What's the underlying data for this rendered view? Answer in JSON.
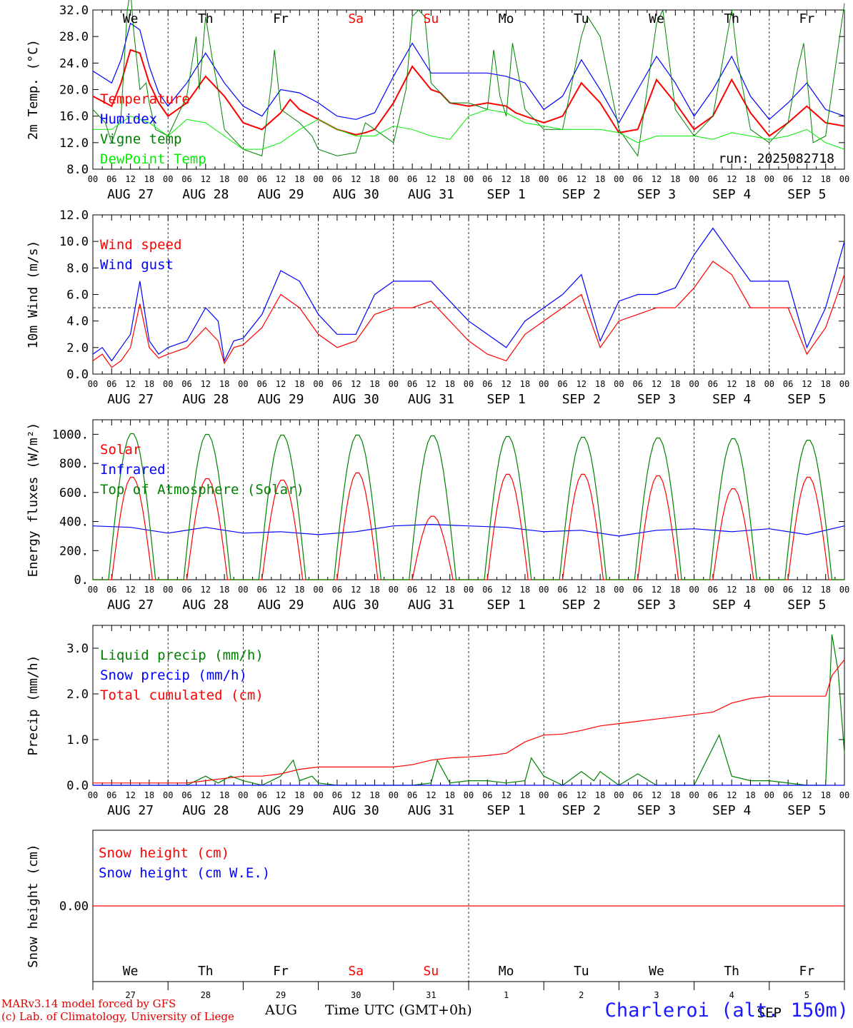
{
  "meta": {
    "model_line": "MARv3.14 model forced by GFS",
    "credit_line": "(c) Lab. of Climatology, University of Liege",
    "x_axis_title": "Time UTC (GMT+0h)",
    "month_label": "AUG",
    "month_label_sep": "SEP",
    "station": "Charleroi (alt. 150m)",
    "run_label": "run: 2025082718"
  },
  "time_axis": {
    "hour_ticks": [
      "00",
      "06",
      "12",
      "18"
    ],
    "day_labels": [
      "AUG 27",
      "AUG 28",
      "AUG 29",
      "AUG 30",
      "AUG 31",
      "SEP  1",
      "SEP  2",
      "SEP  3",
      "SEP  4",
      "SEP  5"
    ],
    "weekdays": [
      "We",
      "Th",
      "Fr",
      "Sa",
      "Su",
      "Mo",
      "Tu",
      "We",
      "Th",
      "Fr"
    ],
    "weekend_color": "#ff0000",
    "weekday_color": "#000000",
    "day_numbers": [
      "27",
      "28",
      "29",
      "30",
      "31",
      "1",
      "2",
      "3",
      "4",
      "5"
    ]
  },
  "chart_data": [
    {
      "id": "temperature",
      "type": "line",
      "ylabel": "2m Temp. (°C)",
      "ylim": [
        8.0,
        32.0
      ],
      "yticks": [
        "8.0",
        "12.0",
        "16.0",
        "20.0",
        "24.0",
        "28.0",
        "32.0"
      ],
      "ytick_values": [
        8,
        12,
        16,
        20,
        24,
        28,
        32
      ],
      "x_unit": "hours since AUG 27 00 UTC",
      "series": [
        {
          "name": "Temperature",
          "color": "#ff0000",
          "width": 2,
          "x": [
            0,
            6,
            9,
            12,
            15,
            18,
            21,
            24,
            30,
            36,
            42,
            48,
            54,
            60,
            63,
            66,
            72,
            78,
            84,
            87,
            90,
            96,
            102,
            108,
            111,
            114,
            120,
            126,
            132,
            135,
            138,
            144,
            150,
            156,
            162,
            168,
            174,
            180,
            186,
            192,
            198,
            204,
            210,
            216,
            222,
            228,
            234,
            240
          ],
          "y": [
            19,
            17.5,
            21,
            26,
            25.5,
            21,
            18,
            16,
            18,
            22,
            19,
            15,
            14,
            16.5,
            18.5,
            17,
            15.5,
            14,
            13.2,
            13.5,
            14,
            18,
            23.5,
            20,
            19.5,
            18,
            17.5,
            18,
            17.5,
            16.5,
            16,
            15,
            16,
            21,
            18,
            13.5,
            14,
            21.5,
            18,
            14,
            16,
            21.5,
            16.5,
            13,
            15,
            17.5,
            15,
            14.5
          ]
        },
        {
          "name": "Humidex",
          "color": "#0000ff",
          "width": 1.2,
          "x": [
            0,
            6,
            9,
            12,
            15,
            18,
            21,
            24,
            30,
            36,
            42,
            48,
            54,
            60,
            66,
            72,
            78,
            84,
            90,
            96,
            102,
            108,
            114,
            120,
            126,
            132,
            138,
            144,
            150,
            156,
            162,
            168,
            174,
            180,
            186,
            192,
            198,
            204,
            210,
            216,
            222,
            228,
            234,
            240
          ],
          "y": [
            22.8,
            21,
            24.5,
            30,
            29,
            23.5,
            19.5,
            17.5,
            21,
            25.5,
            21,
            17.5,
            16,
            20,
            19.5,
            18,
            16,
            15.5,
            16.5,
            22,
            27,
            22.5,
            22.5,
            22.5,
            22.5,
            22,
            21,
            17,
            19,
            24.5,
            20,
            15,
            20,
            25,
            21,
            16,
            20,
            25,
            19,
            15.5,
            18,
            21,
            17,
            16
          ]
        },
        {
          "name": "Vigne temp",
          "color": "#008000",
          "width": 1,
          "x": [
            0,
            4,
            6,
            9,
            11,
            12,
            13,
            15,
            17,
            18,
            20,
            24,
            30,
            33,
            34,
            36,
            38,
            40,
            42,
            48,
            54,
            57,
            58,
            60,
            66,
            70,
            72,
            78,
            84,
            87,
            90,
            96,
            100,
            102,
            104,
            106,
            108,
            114,
            120,
            126,
            128,
            130,
            132,
            134,
            138,
            144,
            150,
            156,
            158,
            162,
            168,
            174,
            180,
            182,
            186,
            192,
            198,
            204,
            206,
            210,
            216,
            222,
            225,
            227,
            230,
            234,
            240
          ],
          "y": [
            17,
            15,
            12,
            16,
            32,
            35,
            29,
            20,
            21,
            18,
            14,
            13,
            19,
            28,
            20,
            31,
            25,
            20,
            14,
            11,
            10,
            21,
            26,
            17,
            15,
            13,
            11,
            10,
            10.5,
            15,
            14,
            12,
            20,
            31,
            32,
            31,
            21,
            18,
            18,
            17,
            26,
            19,
            16,
            27,
            17,
            14,
            14,
            28,
            31,
            28,
            14,
            10,
            30,
            32,
            17,
            13,
            16,
            32,
            24,
            14,
            12,
            15,
            23,
            27,
            12,
            13,
            33
          ]
        },
        {
          "name": "DewPoint Temp",
          "color": "#00ee00",
          "width": 1,
          "x": [
            0,
            6,
            12,
            18,
            24,
            30,
            36,
            42,
            48,
            54,
            60,
            66,
            72,
            78,
            84,
            90,
            96,
            102,
            108,
            114,
            120,
            126,
            132,
            138,
            144,
            150,
            156,
            162,
            168,
            174,
            180,
            186,
            192,
            198,
            204,
            210,
            216,
            222,
            228,
            234,
            240
          ],
          "y": [
            14,
            14,
            16,
            15,
            13,
            15.5,
            15,
            13,
            11,
            11,
            12,
            14,
            15.5,
            14,
            13,
            13,
            14.5,
            14,
            13,
            12.5,
            16,
            17,
            16.5,
            15,
            14.5,
            14,
            14,
            14,
            13.5,
            12,
            13,
            13,
            13,
            12.5,
            13.5,
            13,
            12.5,
            13,
            14,
            12,
            11
          ]
        }
      ]
    },
    {
      "id": "wind",
      "type": "line",
      "ylabel": "10m Wind (m/s)",
      "ylim": [
        0.0,
        12.0
      ],
      "yticks": [
        "0.0",
        "2.0",
        "4.0",
        "6.0",
        "8.0",
        "10.0",
        "12.0"
      ],
      "ytick_values": [
        0,
        2,
        4,
        6,
        8,
        10,
        12
      ],
      "reference_line": 5.0,
      "series": [
        {
          "name": "Wind speed",
          "color": "#ff0000",
          "x": [
            0,
            3,
            6,
            9,
            12,
            15,
            18,
            21,
            24,
            30,
            36,
            40,
            42,
            45,
            48,
            54,
            60,
            66,
            72,
            78,
            84,
            90,
            96,
            102,
            108,
            114,
            120,
            126,
            132,
            138,
            144,
            150,
            156,
            162,
            168,
            174,
            180,
            186,
            192,
            198,
            204,
            210,
            216,
            222,
            228,
            234,
            240
          ],
          "y": [
            1,
            1.5,
            0.5,
            1,
            2,
            5.3,
            2,
            1.2,
            1.5,
            2,
            3.5,
            2.5,
            0.8,
            2,
            2.2,
            3.5,
            6,
            5,
            3,
            2,
            2.5,
            4.5,
            5,
            5,
            5.5,
            4,
            2.5,
            1.5,
            1,
            3,
            4,
            5,
            6,
            2,
            4,
            4.5,
            5,
            5,
            6.5,
            8.5,
            7.5,
            5,
            5,
            5,
            1.5,
            3.5,
            7.5
          ]
        },
        {
          "name": "Wind gust",
          "color": "#0000ff",
          "x": [
            0,
            3,
            6,
            9,
            12,
            15,
            18,
            21,
            24,
            30,
            36,
            40,
            42,
            45,
            48,
            54,
            60,
            66,
            72,
            78,
            84,
            90,
            96,
            102,
            108,
            114,
            120,
            126,
            132,
            138,
            144,
            150,
            156,
            162,
            168,
            174,
            180,
            186,
            192,
            198,
            204,
            210,
            216,
            222,
            228,
            234,
            240
          ],
          "y": [
            1.5,
            2,
            1,
            2,
            3,
            7,
            2.5,
            1.5,
            2,
            2.5,
            5,
            4,
            1,
            2.5,
            2.7,
            4.5,
            7.8,
            7,
            4.5,
            3,
            3,
            6,
            7,
            7,
            7,
            5.5,
            4,
            3,
            2,
            4,
            5,
            6,
            7.5,
            2.5,
            5.5,
            6,
            6,
            6.5,
            9,
            11,
            9,
            7,
            7,
            7,
            2,
            5,
            10
          ]
        }
      ]
    },
    {
      "id": "energy",
      "type": "line",
      "ylabel": "Energy fluxes (W/m²)",
      "ylim": [
        0,
        1100
      ],
      "yticks": [
        "0.",
        "200.",
        "400.",
        "600.",
        "800.",
        "1000."
      ],
      "ytick_values": [
        0,
        200,
        400,
        600,
        800,
        1000
      ],
      "series": [
        {
          "name": "Solar",
          "color": "#ff0000",
          "peaks": [
            710,
            700,
            690,
            740,
            440,
            730,
            730,
            720,
            630,
            710
          ]
        },
        {
          "name": "Infrared",
          "color": "#0000ff",
          "x": [
            0,
            12,
            24,
            36,
            48,
            60,
            72,
            84,
            96,
            108,
            120,
            132,
            144,
            156,
            168,
            180,
            192,
            204,
            216,
            228,
            240
          ],
          "y": [
            370,
            360,
            320,
            360,
            320,
            330,
            310,
            330,
            370,
            380,
            370,
            360,
            330,
            340,
            300,
            340,
            350,
            330,
            350,
            310,
            370
          ]
        },
        {
          "name": "Top of Atmosphere (Solar)",
          "color": "#008000",
          "peaks": [
            1010,
            1005,
            1000,
            1000,
            995,
            990,
            985,
            980,
            975,
            965
          ]
        }
      ]
    },
    {
      "id": "precip",
      "type": "line",
      "ylabel": "Precip (mm/h)",
      "ylim": [
        0.0,
        3.5
      ],
      "yticks": [
        "0.0",
        "1.0",
        "2.0",
        "3.0"
      ],
      "ytick_values": [
        0,
        1,
        2,
        3
      ],
      "series": [
        {
          "name": "Liquid precip (mm/h)",
          "color": "#008000",
          "x": [
            0,
            30,
            36,
            40,
            44,
            48,
            54,
            60,
            64,
            66,
            70,
            72,
            78,
            84,
            96,
            102,
            108,
            110,
            114,
            120,
            126,
            132,
            138,
            140,
            144,
            150,
            156,
            160,
            162,
            168,
            174,
            180,
            186,
            192,
            200,
            204,
            210,
            216,
            228,
            234,
            236,
            238,
            240
          ],
          "y": [
            0,
            0,
            0.2,
            0.05,
            0.2,
            0.1,
            0,
            0.2,
            0.55,
            0.1,
            0.2,
            0.05,
            0,
            0,
            0,
            0,
            0.05,
            0.55,
            0.05,
            0.1,
            0.1,
            0.05,
            0.1,
            0.6,
            0.2,
            0,
            0.3,
            0.1,
            0.3,
            0,
            0.25,
            0,
            0,
            0,
            1.1,
            0.2,
            0.1,
            0.1,
            0,
            0,
            3.3,
            2.5,
            0.7
          ]
        },
        {
          "name": "Snow precip (mm/h)",
          "color": "#0000ff",
          "x": [
            0,
            240
          ],
          "y": [
            0,
            0
          ]
        },
        {
          "name": "Total cumulated (cm)",
          "color": "#ff0000",
          "x": [
            0,
            30,
            36,
            48,
            54,
            60,
            66,
            72,
            84,
            96,
            102,
            108,
            114,
            120,
            126,
            132,
            138,
            144,
            150,
            156,
            162,
            168,
            174,
            180,
            192,
            198,
            204,
            210,
            216,
            228,
            234,
            236,
            240
          ],
          "y": [
            0.05,
            0.05,
            0.1,
            0.2,
            0.2,
            0.25,
            0.35,
            0.4,
            0.4,
            0.4,
            0.45,
            0.55,
            0.6,
            0.62,
            0.65,
            0.7,
            0.95,
            1.1,
            1.12,
            1.2,
            1.3,
            1.35,
            1.4,
            1.45,
            1.55,
            1.6,
            1.8,
            1.9,
            1.95,
            1.95,
            1.95,
            2.4,
            2.75
          ]
        }
      ]
    },
    {
      "id": "snow",
      "type": "line",
      "ylabel": "Snow height (cm)",
      "ylim": [
        -1,
        1
      ],
      "yticks": [
        "0.00"
      ],
      "ytick_values": [
        0
      ],
      "series": [
        {
          "name": "Snow height (cm)",
          "color": "#ff0000",
          "x": [
            0,
            240
          ],
          "y": [
            0,
            0
          ]
        },
        {
          "name": "Snow height (cm W.E.)",
          "color": "#0000ff",
          "x": [],
          "y": []
        }
      ]
    }
  ]
}
